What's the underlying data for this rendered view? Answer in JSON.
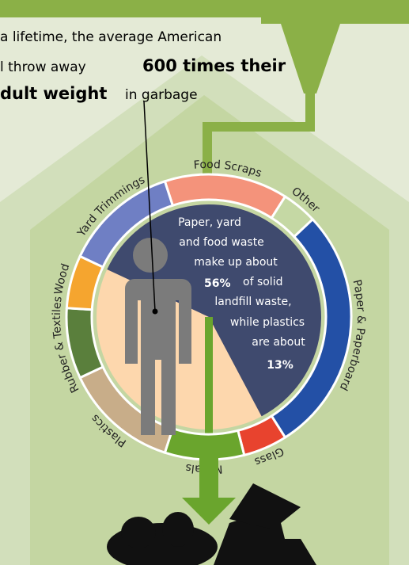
{
  "chart_data": {
    "type": "donut",
    "categories": [
      "Food Scraps",
      "Other",
      "Paper & Paperboard",
      "Glass",
      "Metals",
      "Plastics",
      "Rubber & Textiles",
      "Wood",
      "Yard Trimmings"
    ],
    "values": [
      14,
      4,
      28,
      5,
      9,
      13,
      8,
      6,
      13
    ],
    "colors": [
      "#f4937b",
      "#c5d8a4",
      "#2350a6",
      "#e8432e",
      "#6aa52d",
      "#c8ad89",
      "#5a7f3c",
      "#f5a52f",
      "#6f7fc4"
    ]
  },
  "callout": {
    "line1": "a lifetime, the average American",
    "line2a": "l throw away",
    "line2b": "600 times their",
    "line3a": "dult weight",
    "line3b": "in garbage"
  },
  "center_text": {
    "l1": "Paper, yard",
    "l2": "and food waste",
    "l3": "make up about",
    "p1": "56%",
    "l4": "of solid",
    "l5": "landfill waste,",
    "l6": "while plastics",
    "l7": "are about",
    "p2": "13%"
  }
}
